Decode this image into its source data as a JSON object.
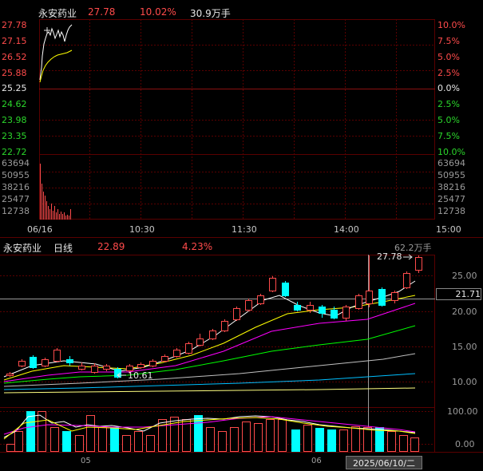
{
  "intraday": {
    "name": "永安药业",
    "price": "27.78",
    "pct": "10.02%",
    "volume": "30.9万手",
    "price_ticks": [
      "27.78",
      "27.15",
      "26.52",
      "25.88",
      "25.25",
      "24.62",
      "23.98",
      "23.35",
      "22.72"
    ],
    "pct_ticks": [
      "10.0%",
      "7.5%",
      "5.0%",
      "2.5%",
      "0.0%",
      "2.5%",
      "5.0%",
      "7.5%",
      "10.0%"
    ],
    "vol_ticks": [
      "63694",
      "50955",
      "38216",
      "25477",
      "12738"
    ],
    "time_ticks": [
      "06/16",
      "10:30",
      "11:30",
      "14:00",
      "15:00"
    ]
  },
  "daily": {
    "name": "永安药业",
    "period": "日线",
    "value": "22.89",
    "pct": "4.23%",
    "vol_max": "62.2万手",
    "high_label": "27.78",
    "low_label": "10.61",
    "price_ticks": [
      "25.00",
      "21.71",
      "20.00",
      "15.00",
      "10.00"
    ],
    "vol_ticks": [
      "100.00",
      "0.00"
    ],
    "month_ticks": [
      "05",
      "06"
    ],
    "date_label": "2025/06/10/二"
  },
  "colors": {
    "up": "#ff4b4b",
    "down": "#00ffff",
    "grid": "#5a0000",
    "ma5": "#ffffff",
    "ma10": "#ffff00",
    "ma20": "#ff00ff",
    "ma30": "#00ff00",
    "ma60": "#c0c0c0",
    "ma120": "#00bfff",
    "ma250": "#ffff80"
  },
  "icons": {
    "crosshair": "cross-icon",
    "arrow": "arrow-icon"
  }
}
